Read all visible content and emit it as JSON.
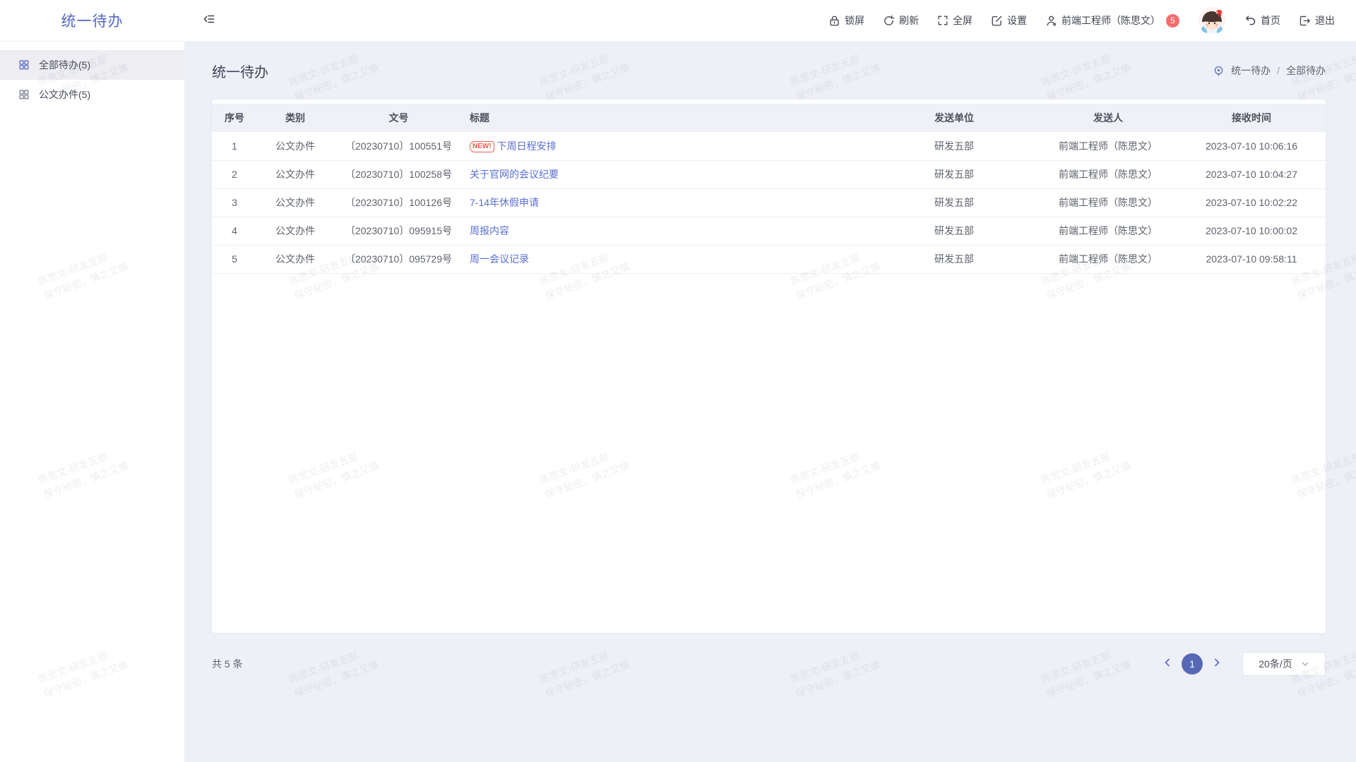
{
  "app": {
    "logo": "统一待办"
  },
  "header": {
    "actions": [
      {
        "id": "lock",
        "label": "锁屏"
      },
      {
        "id": "refresh",
        "label": "刷新"
      },
      {
        "id": "fullscreen",
        "label": "全屏"
      },
      {
        "id": "settings",
        "label": "设置"
      }
    ],
    "user": {
      "label": "前端工程师（陈思文）",
      "badge": "5"
    },
    "home_label": "首页",
    "logout_label": "退出"
  },
  "sidebar": {
    "items": [
      {
        "label": "全部待办(5)",
        "active": true
      },
      {
        "label": "公文办件(5)",
        "active": false
      }
    ]
  },
  "page": {
    "title": "统一待办",
    "breadcrumb": {
      "root": "统一待办",
      "separator": "/",
      "current": "全部待办"
    }
  },
  "table": {
    "columns": [
      "序号",
      "类别",
      "文号",
      "标题",
      "发送单位",
      "发送人",
      "接收时间"
    ],
    "new_badge": "NEW!",
    "rows": [
      {
        "no": "1",
        "category": "公文办件",
        "doc_no": "〔20230710〕100551号",
        "title": "下周日程安排",
        "unit": "研发五部",
        "sender": "前端工程师（陈思文）",
        "time": "2023-07-10 10:06:16"
      },
      {
        "no": "2",
        "category": "公文办件",
        "doc_no": "〔20230710〕100258号",
        "title": "关于官网的会议纪要",
        "unit": "研发五部",
        "sender": "前端工程师（陈思文）",
        "time": "2023-07-10 10:04:27"
      },
      {
        "no": "3",
        "category": "公文办件",
        "doc_no": "〔20230710〕100126号",
        "title": "7-14年休假申请",
        "unit": "研发五部",
        "sender": "前端工程师（陈思文）",
        "time": "2023-07-10 10:02:22"
      },
      {
        "no": "4",
        "category": "公文办件",
        "doc_no": "〔20230710〕095915号",
        "title": "周报内容",
        "unit": "研发五部",
        "sender": "前端工程师（陈思文）",
        "time": "2023-07-10 10:00:02"
      },
      {
        "no": "5",
        "category": "公文办件",
        "doc_no": "〔20230710〕095729号",
        "title": "周一会议记录",
        "unit": "研发五部",
        "sender": "前端工程师（陈思文）",
        "time": "2023-07-10 09:58:11"
      }
    ]
  },
  "pagination": {
    "total": "共 5 条",
    "current_page": "1",
    "page_size": "20条/页"
  },
  "watermark": {
    "line1": "陈思文-研发五部",
    "line2": "保守秘密，慎之又慎"
  },
  "colors": {
    "accent": "#5268c4",
    "link": "#5a6fd0",
    "pager_active": "#5868b5",
    "user_badge": "#f56c6c",
    "new_badge": "#ee5b4d",
    "content_bg": "#eef0f7"
  }
}
